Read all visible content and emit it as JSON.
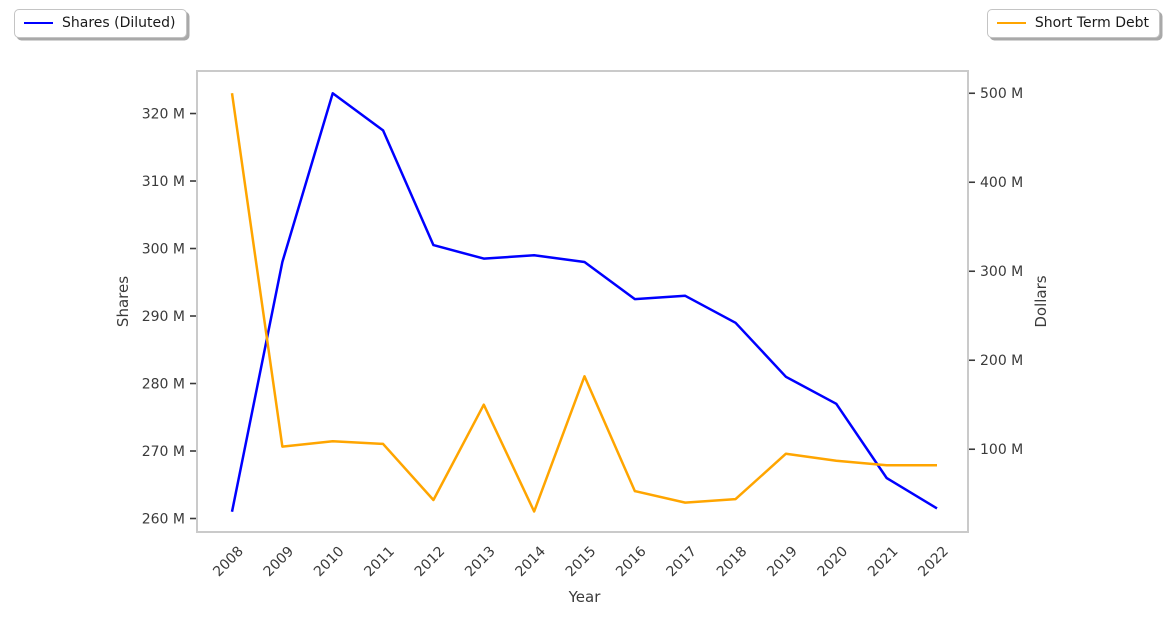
{
  "legends": [
    {
      "label": "Shares (Diluted)",
      "color": "#0000ff"
    },
    {
      "label": "Short Term Debt",
      "color": "#ffa500"
    }
  ],
  "chart_data": {
    "type": "line",
    "title": "",
    "categories": [
      "2008",
      "2009",
      "2010",
      "2011",
      "2012",
      "2013",
      "2014",
      "2015",
      "2016",
      "2017",
      "2018",
      "2019",
      "2020",
      "2021",
      "2022"
    ],
    "xlabel": "Year",
    "unit": "M",
    "grid": false,
    "legend_position": [
      "outside upper left",
      "outside upper right"
    ],
    "series": [
      {
        "name": "Shares (Diluted)",
        "axis": "left",
        "color": "#0000ff",
        "values": [
          261,
          298,
          323,
          317.5,
          300.5,
          298.5,
          299,
          298,
          292.5,
          293,
          289,
          281,
          277,
          266,
          261.5
        ]
      },
      {
        "name": "Short Term Debt",
        "axis": "right",
        "color": "#ffa500",
        "values": [
          500,
          103,
          109,
          106,
          43,
          150,
          30,
          182,
          53,
          40,
          44,
          95,
          87,
          82,
          82
        ]
      }
    ],
    "left_axis": {
      "label": "Shares",
      "ticks": [
        260,
        270,
        280,
        290,
        300,
        310,
        320
      ],
      "tick_suffix": " M",
      "ylim": [
        258.0,
        326.3
      ]
    },
    "right_axis": {
      "label": "Dollars",
      "ticks": [
        100,
        200,
        300,
        400,
        500
      ],
      "tick_suffix": " M",
      "ylim": [
        7.0,
        525.0
      ]
    }
  }
}
